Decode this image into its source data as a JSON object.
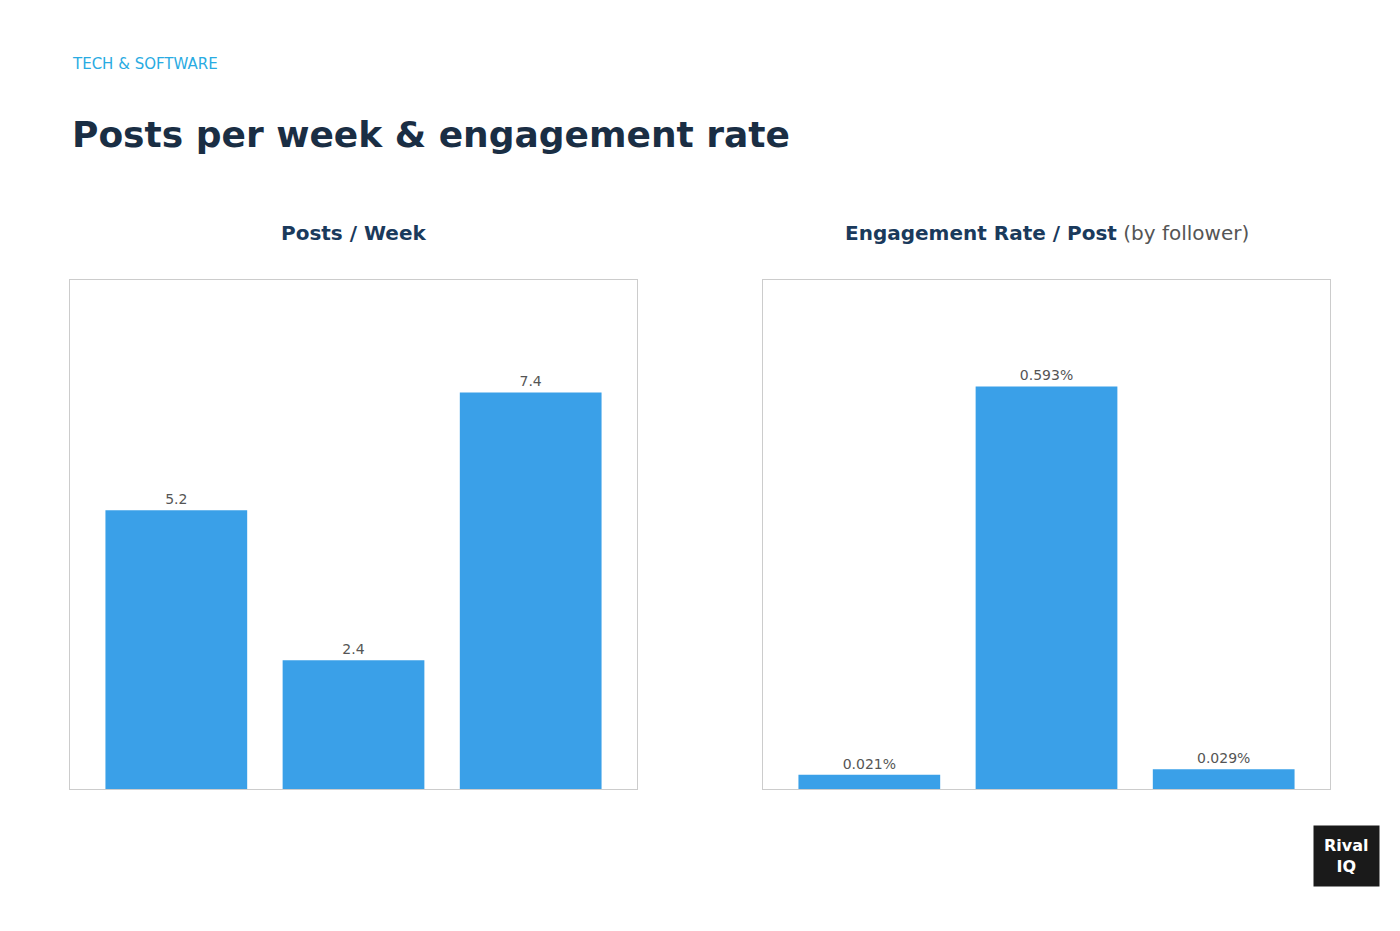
{
  "title": "Posts per week & engagement rate",
  "subtitle": "TECH & SOFTWARE",
  "annotations": [
    "Rival",
    "IQ"
  ],
  "chart_data": [
    {
      "type": "bar",
      "title": "Posts / Week",
      "categories": [
        null,
        null,
        null
      ],
      "values": [
        5.2,
        2.4,
        7.4
      ],
      "color": "#3aa0e8",
      "ylim": [
        0,
        9.5
      ],
      "grid": false,
      "tick_labels": false,
      "data_labels": true
    },
    {
      "type": "bar",
      "title": "Engagement Rate / Post",
      "subtitle": "(by follower)",
      "categories": [
        null,
        null,
        null
      ],
      "values": [
        0.00021,
        0.00593,
        0.00029
      ],
      "value_labels": [
        "0.021%",
        "0.593%",
        "0.029%"
      ],
      "color": "#3aa0e8",
      "ylim": [
        0,
        0.0075
      ],
      "grid": false,
      "tick_labels": false,
      "data_labels": true
    }
  ]
}
